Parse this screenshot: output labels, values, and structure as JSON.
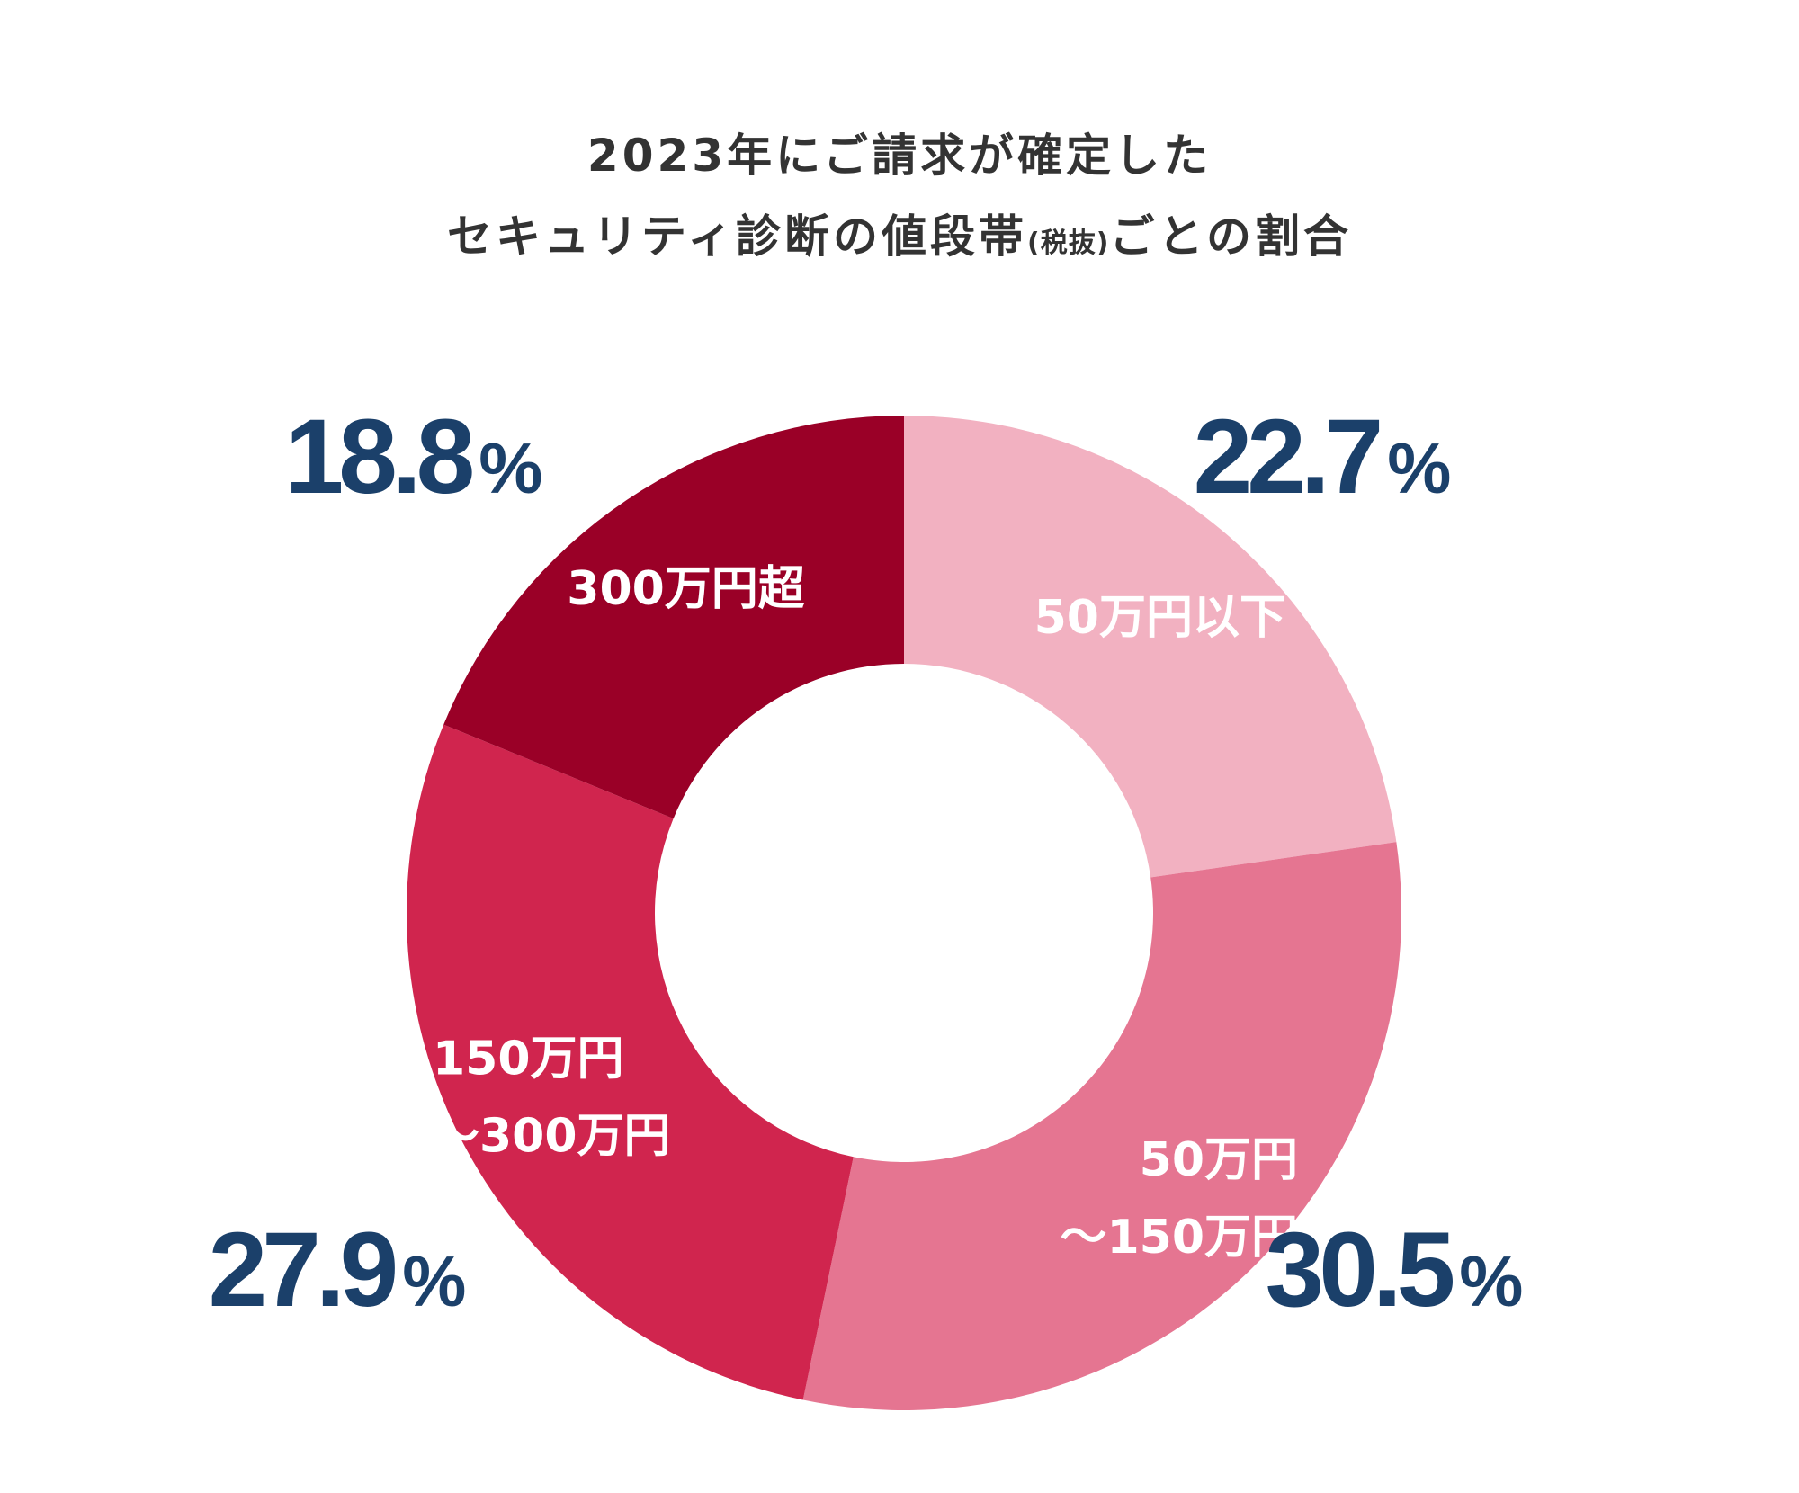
{
  "title": {
    "line1": "2023年にご請求が確定した",
    "line2_main": "セキュリティ診断の値段帯",
    "line2_small": "(税抜)",
    "line2_tail": "ごとの割合"
  },
  "colors": {
    "title_text": "#333333",
    "percent_text": "#1b406a",
    "category_text": "#ffffff"
  },
  "chart_data": {
    "type": "pie",
    "title": "2023年にご請求が確定したセキュリティ診断の値段帯(税抜)ごとの割合",
    "unit": "%",
    "slices": [
      {
        "label_lines": [
          "50万円以下"
        ],
        "value": 22.7,
        "value_text": "22.7",
        "color": "#f2b1c1"
      },
      {
        "label_lines": [
          "50万円",
          "～150万円"
        ],
        "value": 30.5,
        "value_text": "30.5",
        "color": "#e57591"
      },
      {
        "label_lines": [
          "150万円",
          "～300万円"
        ],
        "value": 27.9,
        "value_text": "27.9",
        "color": "#d0254e"
      },
      {
        "label_lines": [
          "300万円超"
        ],
        "value": 18.8,
        "value_text": "18.8",
        "color": "#9a0027"
      }
    ]
  }
}
